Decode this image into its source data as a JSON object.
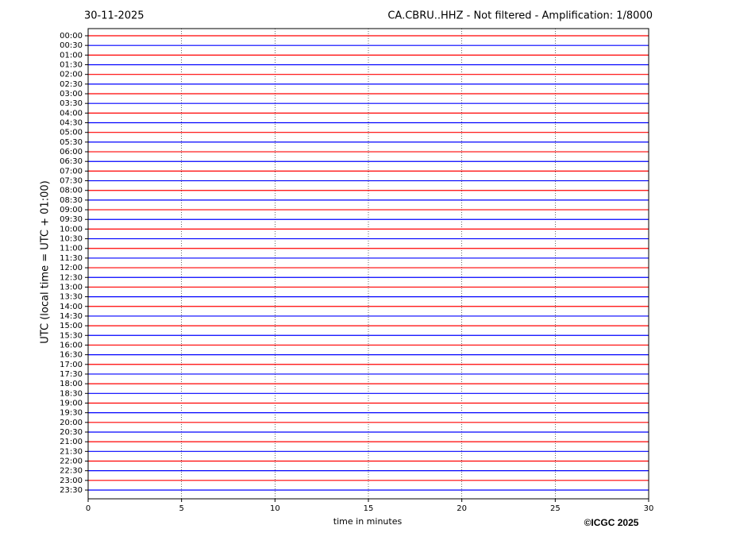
{
  "chart_data": {
    "type": "helicorder",
    "date": "30-11-2025",
    "title": "CA.CBRU..HHZ - Not filtered - Amplification: 1/8000",
    "ylabel": "UTC (local time = UTC + 01:00)",
    "xlabel": "time in minutes",
    "copyright": "©ICGC 2025",
    "categories": [
      "00:00",
      "00:30",
      "01:00",
      "01:30",
      "02:00",
      "02:30",
      "03:00",
      "03:30",
      "04:00",
      "04:30",
      "05:00",
      "05:30",
      "06:00",
      "06:30",
      "07:00",
      "07:30",
      "08:00",
      "08:30",
      "09:00",
      "09:30",
      "10:00",
      "10:30",
      "11:00",
      "11:30",
      "12:00",
      "12:30",
      "13:00",
      "13:30",
      "14:00",
      "14:30",
      "15:00",
      "15:30",
      "16:00",
      "16:30",
      "17:00",
      "17:30",
      "18:00",
      "18:30",
      "19:00",
      "19:30",
      "20:00",
      "20:30",
      "21:00",
      "21:30",
      "22:00",
      "22:30",
      "23:00",
      "23:30"
    ],
    "colors": [
      "#ff0000",
      "#0000ff"
    ],
    "xlim": [
      0,
      30
    ],
    "xticks": [
      0,
      5,
      10,
      15,
      20,
      25,
      30
    ],
    "grid": true
  }
}
